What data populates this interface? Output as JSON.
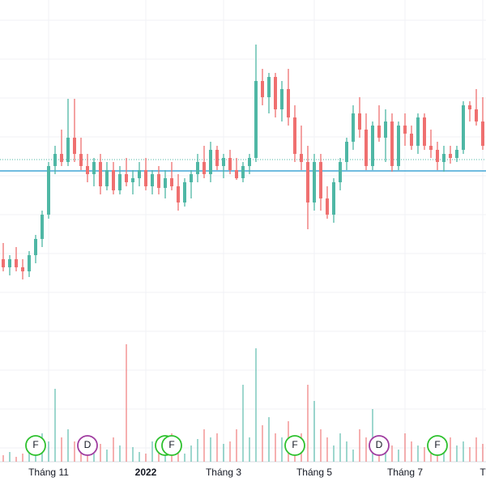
{
  "chart_data": {
    "type": "candlestick",
    "categories": [
      null,
      null,
      null,
      null,
      null,
      null,
      null,
      "Tháng 11",
      null,
      null,
      null,
      null,
      null,
      null,
      null,
      null,
      null,
      null,
      null,
      null,
      null,
      null,
      "2022",
      null,
      null,
      null,
      null,
      null,
      null,
      null,
      null,
      null,
      null,
      null,
      "Tháng 3",
      null,
      null,
      null,
      null,
      null,
      null,
      null,
      null,
      null,
      null,
      null,
      null,
      null,
      "Tháng 5",
      null,
      null,
      null,
      null,
      null,
      null,
      null,
      null,
      null,
      null,
      null,
      null,
      null,
      "Tháng 7",
      null,
      null,
      null,
      null,
      null,
      null,
      null,
      null,
      null,
      null,
      null,
      "T"
    ],
    "open": [
      28,
      27,
      28,
      27,
      26.5,
      28.5,
      30.5,
      33.5,
      39.5,
      41,
      40,
      43,
      41,
      39.5,
      38.5,
      40,
      37,
      39,
      36.5,
      38.5,
      37.5,
      38,
      39,
      37,
      38.5,
      36.8,
      38,
      37,
      35,
      37.5,
      38.5,
      40,
      38.5,
      41.5,
      39.5,
      40.5,
      39,
      38,
      39.5,
      40.5,
      50,
      48,
      50.5,
      46.5,
      49,
      45.5,
      41,
      40,
      35,
      40,
      35.5,
      33.5,
      37.5,
      40,
      42.5,
      46,
      44,
      39.5,
      44.5,
      43,
      45,
      39.5,
      44.5,
      43.5,
      42,
      45.5,
      42,
      41.5,
      40,
      41,
      40.5,
      41.5,
      47,
      46.5,
      45
    ],
    "high": [
      30,
      28.5,
      29.5,
      28,
      29,
      31,
      34,
      40,
      42,
      44,
      47.8,
      47.8,
      43,
      41,
      40.5,
      41,
      40,
      40,
      39.5,
      40.5,
      39,
      40,
      40.5,
      39,
      39.5,
      39,
      40,
      38.5,
      38,
      39,
      41,
      42,
      42.5,
      42,
      41,
      41.5,
      40.5,
      40,
      41,
      54.5,
      51.5,
      51,
      51,
      50,
      51.5,
      47,
      44.5,
      42,
      41,
      41,
      37,
      38,
      40.5,
      43,
      47,
      48,
      46,
      45,
      47,
      46.5,
      46,
      45,
      46,
      44.5,
      46,
      46,
      44,
      42.5,
      42,
      42,
      42,
      47.5,
      47.5,
      49,
      48
    ],
    "low": [
      26.5,
      26,
      26.5,
      25.5,
      25.8,
      27.5,
      29.5,
      33,
      38.5,
      39.5,
      39.5,
      40,
      39,
      37.5,
      37,
      36,
      36.5,
      36,
      36,
      37,
      36,
      37,
      36.5,
      36,
      36,
      35.5,
      36.5,
      34,
      34.5,
      35.5,
      37.5,
      38,
      37.5,
      39,
      38,
      38.5,
      37.8,
      37.5,
      38.5,
      40,
      47,
      46,
      45.5,
      45,
      44.5,
      40,
      39,
      31.7,
      34,
      34,
      33,
      32.5,
      36.5,
      39,
      41.5,
      43,
      39,
      39,
      42.5,
      40,
      38.8,
      39,
      42,
      41.5,
      41,
      41.5,
      40.5,
      39,
      38.8,
      39.8,
      40,
      41,
      45,
      44.5,
      41.5
    ],
    "close": [
      27,
      28,
      27,
      26.5,
      28.5,
      30.5,
      33.5,
      39.5,
      41,
      40,
      43,
      41,
      39.5,
      38.5,
      40,
      37,
      39,
      36.5,
      38.5,
      37.5,
      38,
      39,
      37,
      38.5,
      36.8,
      38,
      37,
      35,
      37.5,
      38.5,
      40,
      38.5,
      41.5,
      39.5,
      40.5,
      39,
      38,
      39.5,
      40.5,
      50,
      48,
      50.5,
      46.5,
      49,
      45.5,
      41,
      40,
      35,
      40,
      35.5,
      33.5,
      37.5,
      40,
      42.5,
      46,
      44,
      39.5,
      44.5,
      43,
      45,
      39.5,
      44.5,
      43.5,
      42,
      45.5,
      42,
      41.5,
      40,
      41,
      40.5,
      41.5,
      47,
      46.5,
      45,
      42
    ],
    "volume": [
      8,
      12,
      6,
      10,
      15,
      20,
      35,
      25,
      90,
      30,
      40,
      25,
      18,
      12,
      10,
      22,
      15,
      30,
      20,
      145,
      18,
      12,
      10,
      25,
      20,
      30,
      35,
      15,
      10,
      20,
      28,
      40,
      30,
      35,
      22,
      25,
      40,
      95,
      30,
      140,
      45,
      55,
      35,
      30,
      50,
      25,
      35,
      95,
      75,
      40,
      30,
      20,
      35,
      25,
      15,
      40,
      30,
      65,
      30,
      25,
      20,
      15,
      35,
      25,
      20,
      18,
      22,
      15,
      12,
      30,
      20,
      25,
      18,
      30,
      22
    ],
    "ylim": [
      0,
      60
    ],
    "volume_ylim": [
      0,
      150
    ],
    "price_line": 38.9,
    "last_close_line": 40.3,
    "up_color": "#4fb7a5",
    "down_color": "#ef7070",
    "price_line_color": "#42a5d5",
    "events": [
      null,
      null,
      null,
      null,
      null,
      "F",
      null,
      null,
      null,
      null,
      null,
      null,
      null,
      "D",
      null,
      null,
      null,
      null,
      null,
      null,
      null,
      null,
      null,
      null,
      null,
      "F",
      "F",
      null,
      null,
      null,
      null,
      null,
      null,
      null,
      null,
      null,
      null,
      null,
      null,
      null,
      null,
      null,
      null,
      null,
      null,
      "F",
      null,
      null,
      null,
      null,
      null,
      null,
      null,
      null,
      null,
      null,
      null,
      null,
      "D",
      null,
      null,
      null,
      null,
      null,
      null,
      null,
      null,
      "F",
      null,
      null,
      null,
      null,
      null,
      null,
      null
    ],
    "event_colors": {
      "F": "#2ec12e",
      "D": "#a03ca0"
    },
    "grid": true
  }
}
